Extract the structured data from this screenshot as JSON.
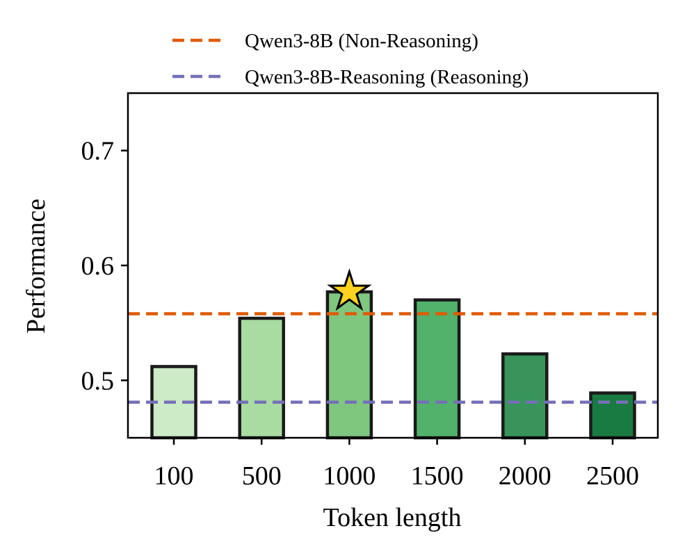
{
  "chart_data": {
    "type": "bar",
    "title": "",
    "xlabel": "Token length",
    "ylabel": "Performance",
    "categories": [
      "100",
      "500",
      "1000",
      "1500",
      "2000",
      "2500"
    ],
    "values": [
      0.512,
      0.554,
      0.577,
      0.57,
      0.523,
      0.489
    ],
    "bar_colors": [
      "#cdebc6",
      "#a8dca1",
      "#7fc67f",
      "#52b26b",
      "#38945a",
      "#1a7b42"
    ],
    "highlight": {
      "category": "1000",
      "marker": "star",
      "color": "#ffd21f"
    },
    "ylim": [
      0.45,
      0.75
    ],
    "yticks": [
      0.5,
      0.6,
      0.7
    ],
    "ytick_labels": [
      "0.5",
      "0.6",
      "0.7"
    ],
    "grid": false,
    "legend_position": "top",
    "reference_lines": [
      {
        "name": "Qwen3-8B (Non-Reasoning)",
        "value": 0.558,
        "color": "#e05a00",
        "style": "dashed"
      },
      {
        "name": "Qwen3-8B-Reasoning (Reasoning)",
        "value": 0.481,
        "color": "#7570b8",
        "style": "dashed"
      }
    ]
  }
}
